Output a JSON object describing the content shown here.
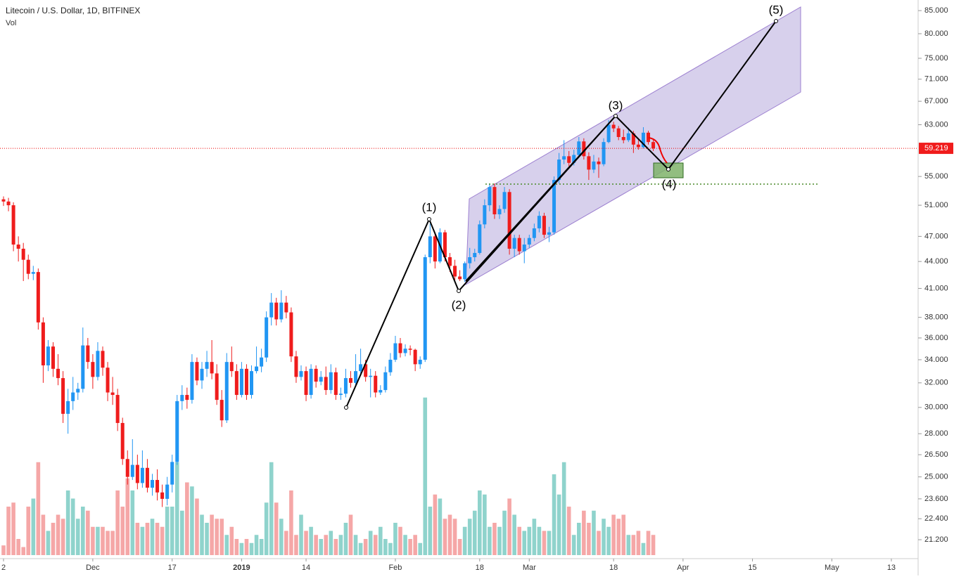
{
  "chart_data": {
    "type": "candlestick",
    "title": "Litecoin / U.S. Dollar, 1D, BITFINEX",
    "volume_label": "Vol",
    "log_scale": true,
    "up_color": "#2196f3",
    "down_color": "#ef1c1c",
    "volume_up_color": "#8fd3cc",
    "volume_down_color": "#f5a7a7",
    "ylim": [
      20.36,
      87.4
    ],
    "yticks": [
      {
        "value": 85,
        "label": "85.000"
      },
      {
        "value": 80,
        "label": "80.000"
      },
      {
        "value": 75,
        "label": "75.000"
      },
      {
        "value": 71,
        "label": "71.000"
      },
      {
        "value": 67,
        "label": "67.000"
      },
      {
        "value": 63,
        "label": "63.000"
      },
      {
        "value": 55,
        "label": "55.000"
      },
      {
        "value": 51,
        "label": "51.000"
      },
      {
        "value": 47,
        "label": "47.000"
      },
      {
        "value": 44,
        "label": "44.000"
      },
      {
        "value": 41,
        "label": "41.000"
      },
      {
        "value": 38,
        "label": "38.000"
      },
      {
        "value": 36,
        "label": "36.000"
      },
      {
        "value": 34,
        "label": "34.000"
      },
      {
        "value": 32,
        "label": "32.000"
      },
      {
        "value": 30,
        "label": "30.000"
      },
      {
        "value": 28,
        "label": "28.000"
      },
      {
        "value": 26.5,
        "label": "26.500"
      },
      {
        "value": 25,
        "label": "25.000"
      },
      {
        "value": 23.6,
        "label": "23.600"
      },
      {
        "value": 22.4,
        "label": "22.400"
      },
      {
        "value": 21.2,
        "label": "21.200"
      }
    ],
    "xticks": [
      {
        "value": 0,
        "label": "2"
      },
      {
        "value": 18,
        "label": "Dec"
      },
      {
        "value": 34,
        "label": "17"
      },
      {
        "value": 48,
        "label": "2019"
      },
      {
        "value": 61,
        "label": "14"
      },
      {
        "value": 79,
        "label": "Feb"
      },
      {
        "value": 96,
        "label": "18"
      },
      {
        "value": 106,
        "label": "Mar"
      },
      {
        "value": 123,
        "label": "18"
      },
      {
        "value": 137,
        "label": "Apr"
      },
      {
        "value": 151,
        "label": "15"
      },
      {
        "value": 167,
        "label": "May"
      },
      {
        "value": 179,
        "label": "13"
      }
    ],
    "last_price": 59.219,
    "wave_labels": [
      "(1)",
      "(2)",
      "(3)",
      "(4)",
      "(5)"
    ],
    "volume_ylim": [
      0,
      200
    ],
    "ohlc": [
      [
        51.8,
        52.2,
        50.9,
        51.5
      ],
      [
        51.5,
        52.0,
        50.2,
        51.0
      ],
      [
        51.0,
        51.4,
        45.2,
        46.0
      ],
      [
        46.0,
        47.0,
        44.0,
        45.5
      ],
      [
        45.5,
        46.2,
        41.8,
        44.2
      ],
      [
        44.2,
        44.8,
        42.0,
        42.6
      ],
      [
        42.6,
        43.5,
        41.9,
        42.8
      ],
      [
        42.8,
        43.2,
        36.8,
        37.5
      ],
      [
        37.5,
        38.0,
        32.0,
        33.5
      ],
      [
        33.5,
        35.8,
        33.0,
        35.2
      ],
      [
        35.2,
        35.6,
        32.5,
        33.2
      ],
      [
        33.2,
        34.5,
        31.8,
        32.4
      ],
      [
        32.4,
        33.0,
        28.8,
        29.5
      ],
      [
        29.5,
        31.5,
        28.0,
        30.5
      ],
      [
        30.5,
        32.5,
        29.8,
        31.2
      ],
      [
        31.2,
        32.0,
        30.6,
        31.5
      ],
      [
        31.5,
        37.0,
        31.2,
        35.3
      ],
      [
        35.3,
        36.0,
        33.2,
        33.8
      ],
      [
        33.8,
        34.5,
        31.5,
        32.5
      ],
      [
        32.5,
        35.6,
        32.2,
        34.8
      ],
      [
        34.8,
        35.2,
        32.6,
        33.3
      ],
      [
        33.3,
        33.8,
        30.5,
        31.2
      ],
      [
        31.2,
        32.5,
        30.2,
        31.0
      ],
      [
        31.0,
        31.5,
        28.2,
        28.8
      ],
      [
        28.8,
        29.2,
        25.8,
        26.2
      ],
      [
        26.2,
        26.8,
        24.5,
        25.0
      ],
      [
        25.0,
        27.6,
        24.8,
        25.8
      ],
      [
        25.8,
        26.5,
        24.2,
        24.6
      ],
      [
        24.6,
        26.8,
        24.3,
        25.6
      ],
      [
        25.6,
        26.2,
        24.0,
        24.3
      ],
      [
        24.3,
        25.2,
        23.8,
        24.8
      ],
      [
        24.8,
        25.5,
        23.5,
        24.0
      ],
      [
        24.0,
        24.5,
        23.1,
        23.6
      ],
      [
        23.6,
        25.0,
        23.2,
        24.5
      ],
      [
        24.5,
        26.5,
        24.0,
        26.0
      ],
      [
        26.0,
        31.0,
        25.8,
        30.5
      ],
      [
        30.5,
        31.8,
        29.8,
        31.0
      ],
      [
        31.0,
        31.6,
        29.9,
        30.6
      ],
      [
        30.6,
        34.5,
        30.3,
        33.8
      ],
      [
        33.8,
        34.2,
        31.8,
        32.2
      ],
      [
        32.2,
        33.8,
        31.5,
        33.2
      ],
      [
        33.2,
        34.8,
        32.5,
        33.8
      ],
      [
        33.8,
        35.8,
        32.3,
        32.8
      ],
      [
        32.8,
        33.6,
        30.2,
        30.6
      ],
      [
        30.6,
        31.4,
        28.5,
        29.0
      ],
      [
        29.0,
        34.6,
        28.8,
        33.8
      ],
      [
        33.8,
        35.2,
        32.5,
        33.0
      ],
      [
        33.0,
        33.6,
        30.6,
        31.0
      ],
      [
        31.0,
        33.8,
        30.8,
        33.2
      ],
      [
        33.2,
        33.6,
        30.6,
        31.0
      ],
      [
        31.0,
        33.5,
        30.7,
        33.0
      ],
      [
        33.0,
        35.2,
        32.8,
        33.4
      ],
      [
        33.4,
        35.0,
        32.9,
        34.2
      ],
      [
        34.2,
        38.6,
        33.8,
        38.0
      ],
      [
        38.0,
        40.5,
        37.2,
        39.5
      ],
      [
        39.5,
        40.0,
        37.2,
        37.8
      ],
      [
        37.8,
        40.8,
        37.5,
        39.5
      ],
      [
        39.5,
        40.2,
        37.9,
        38.5
      ],
      [
        38.5,
        39.0,
        33.8,
        34.3
      ],
      [
        34.3,
        34.8,
        32.0,
        32.5
      ],
      [
        32.5,
        33.5,
        32.2,
        33.0
      ],
      [
        33.0,
        33.4,
        30.5,
        31.0
      ],
      [
        31.0,
        33.6,
        30.7,
        33.2
      ],
      [
        33.2,
        33.5,
        31.6,
        32.1
      ],
      [
        32.1,
        33.0,
        31.8,
        32.5
      ],
      [
        32.5,
        33.4,
        31.0,
        31.4
      ],
      [
        31.4,
        33.6,
        31.1,
        32.9
      ],
      [
        32.9,
        33.3,
        30.6,
        31.0
      ],
      [
        31.0,
        31.6,
        30.6,
        31.1
      ],
      [
        31.1,
        33.2,
        30.8,
        32.4
      ],
      [
        32.4,
        33.0,
        31.6,
        32.0
      ],
      [
        32.0,
        34.5,
        31.8,
        33.0
      ],
      [
        33.0,
        35.0,
        32.8,
        33.6
      ],
      [
        33.6,
        34.0,
        32.1,
        32.5
      ],
      [
        32.5,
        33.2,
        30.8,
        32.6
      ],
      [
        32.6,
        33.0,
        30.8,
        31.2
      ],
      [
        31.2,
        31.8,
        31.0,
        31.4
      ],
      [
        31.4,
        33.4,
        31.2,
        32.9
      ],
      [
        32.9,
        34.6,
        32.6,
        34.0
      ],
      [
        34.0,
        36.2,
        33.8,
        35.5
      ],
      [
        35.5,
        36.0,
        34.2,
        34.6
      ],
      [
        34.6,
        35.4,
        34.3,
        35.0
      ],
      [
        35.0,
        35.3,
        34.4,
        34.9
      ],
      [
        34.9,
        35.0,
        33.0,
        33.6
      ],
      [
        33.6,
        34.3,
        33.2,
        34.0
      ],
      [
        34.0,
        44.8,
        33.8,
        44.5
      ],
      [
        44.5,
        48.6,
        43.8,
        47.0
      ],
      [
        47.0,
        47.5,
        43.2,
        44.0
      ],
      [
        44.0,
        48.0,
        43.8,
        47.5
      ],
      [
        47.5,
        47.8,
        44.0,
        44.5
      ],
      [
        44.5,
        45.0,
        42.8,
        43.5
      ],
      [
        43.5,
        44.2,
        41.8,
        42.3
      ],
      [
        42.3,
        43.0,
        41.8,
        42.0
      ],
      [
        42.0,
        44.0,
        41.7,
        43.8
      ],
      [
        43.8,
        45.6,
        43.2,
        44.5
      ],
      [
        44.5,
        45.5,
        44.0,
        45.0
      ],
      [
        45.0,
        49.0,
        44.8,
        48.5
      ],
      [
        48.5,
        51.8,
        48.0,
        51.0
      ],
      [
        51.0,
        54.0,
        50.2,
        53.5
      ],
      [
        53.5,
        54.0,
        49.2,
        49.8
      ],
      [
        49.8,
        51.0,
        49.2,
        50.5
      ],
      [
        50.5,
        53.5,
        50.0,
        52.8
      ],
      [
        52.8,
        53.2,
        44.8,
        45.5
      ],
      [
        45.5,
        47.2,
        44.5,
        46.8
      ],
      [
        46.8,
        47.2,
        44.8,
        45.2
      ],
      [
        45.2,
        46.8,
        43.8,
        46.0
      ],
      [
        46.0,
        47.2,
        45.6,
        46.8
      ],
      [
        46.8,
        48.6,
        46.4,
        48.0
      ],
      [
        48.0,
        50.2,
        47.5,
        49.6
      ],
      [
        49.6,
        50.0,
        46.8,
        47.2
      ],
      [
        47.2,
        48.2,
        46.3,
        47.5
      ],
      [
        47.5,
        55.0,
        47.2,
        54.5
      ],
      [
        54.5,
        58.5,
        54.0,
        57.5
      ],
      [
        57.5,
        60.5,
        56.8,
        58.0
      ],
      [
        58.0,
        58.8,
        56.5,
        57.0
      ],
      [
        57.0,
        59.0,
        56.6,
        58.2
      ],
      [
        58.2,
        61.0,
        57.8,
        60.3
      ],
      [
        60.3,
        60.8,
        57.5,
        58.0
      ],
      [
        58.0,
        58.6,
        54.5,
        56.0
      ],
      [
        56.0,
        58.2,
        55.5,
        57.2
      ],
      [
        57.2,
        57.8,
        54.8,
        56.8
      ],
      [
        56.8,
        60.8,
        56.5,
        60.2
      ],
      [
        60.2,
        63.8,
        60.0,
        63.0
      ],
      [
        63.0,
        63.5,
        61.8,
        62.4
      ],
      [
        62.4,
        62.8,
        60.5,
        61.0
      ],
      [
        61.0,
        62.2,
        60.0,
        60.5
      ],
      [
        60.5,
        62.5,
        60.2,
        61.6
      ],
      [
        61.6,
        62.0,
        58.5,
        59.8
      ],
      [
        59.8,
        60.5,
        59.0,
        59.4
      ],
      [
        59.4,
        62.6,
        59.2,
        61.7
      ],
      [
        61.7,
        62.0,
        59.8,
        60.2
      ],
      [
        60.2,
        60.6,
        58.8,
        59.2
      ]
    ],
    "volume": [
      12,
      60,
      65,
      20,
      10,
      60,
      70,
      115,
      50,
      30,
      40,
      50,
      45,
      80,
      70,
      45,
      60,
      55,
      35,
      35,
      35,
      30,
      30,
      80,
      60,
      95,
      80,
      40,
      35,
      40,
      45,
      40,
      35,
      60,
      60,
      115,
      55,
      90,
      85,
      70,
      50,
      40,
      50,
      45,
      45,
      25,
      35,
      20,
      15,
      20,
      15,
      25,
      20,
      65,
      115,
      65,
      45,
      30,
      80,
      25,
      50,
      30,
      35,
      25,
      20,
      25,
      30,
      20,
      25,
      40,
      50,
      25,
      15,
      20,
      30,
      25,
      35,
      20,
      15,
      40,
      35,
      25,
      20,
      25,
      15,
      195,
      60,
      75,
      70,
      45,
      50,
      45,
      20,
      35,
      45,
      55,
      80,
      75,
      35,
      40,
      35,
      55,
      70,
      50,
      35,
      30,
      35,
      45,
      35,
      30,
      30,
      100,
      75,
      115,
      60,
      25,
      40,
      55,
      40,
      55,
      30,
      45,
      35,
      50,
      45,
      50,
      25,
      25,
      30,
      15,
      30,
      25
    ]
  }
}
